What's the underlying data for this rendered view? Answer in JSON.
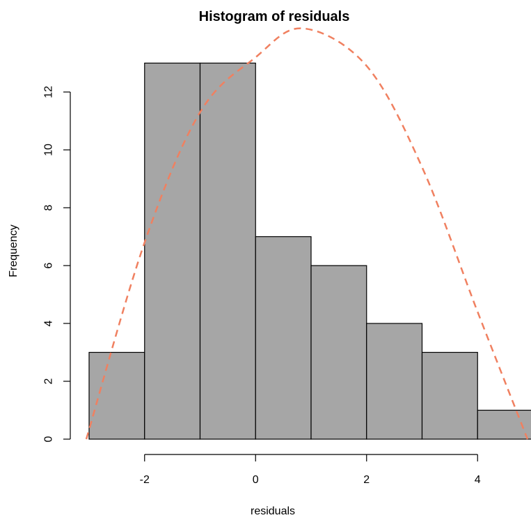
{
  "chart_data": {
    "type": "bar",
    "title": "Histogram of residuals",
    "xlabel": "residuals",
    "ylabel": "Frequency",
    "bins": [
      {
        "from": -3,
        "to": -2,
        "count": 3
      },
      {
        "from": -2,
        "to": -1,
        "count": 13
      },
      {
        "from": -1,
        "to": 0,
        "count": 13
      },
      {
        "from": 0,
        "to": 1,
        "count": 7
      },
      {
        "from": 1,
        "to": 2,
        "count": 6
      },
      {
        "from": 2,
        "to": 3,
        "count": 4
      },
      {
        "from": 3,
        "to": 4,
        "count": 3
      },
      {
        "from": 4,
        "to": 5,
        "count": 1
      }
    ],
    "xlim": [
      -3,
      5
    ],
    "ylim": [
      0,
      13
    ],
    "x_ticks": [
      -2,
      0,
      2,
      4
    ],
    "y_ticks": [
      0,
      2,
      4,
      6,
      8,
      10,
      12
    ],
    "curve": {
      "style": "dashed",
      "color": "#f08060",
      "points": [
        {
          "x": -3.05,
          "y": 0
        },
        {
          "x": -2.0,
          "y": 6.8
        },
        {
          "x": -1.0,
          "y": 11.3
        },
        {
          "x": 0.0,
          "y": 13.2
        },
        {
          "x": 0.85,
          "y": 14.2
        },
        {
          "x": 2.0,
          "y": 12.9
        },
        {
          "x": 3.0,
          "y": 9.4
        },
        {
          "x": 4.0,
          "y": 4.4
        },
        {
          "x": 4.9,
          "y": 0
        }
      ]
    },
    "grid": false,
    "legend": "none",
    "bar_color": "#a6a6a6"
  }
}
